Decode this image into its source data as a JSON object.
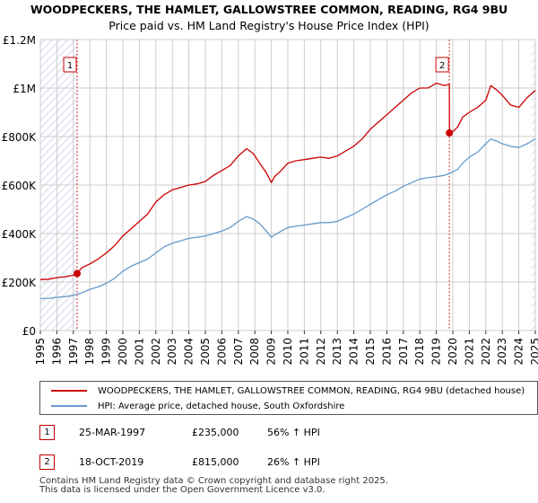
{
  "chart_data": {
    "type": "line",
    "title": "WOODPECKERS, THE HAMLET, GALLOWSTREE COMMON, READING, RG4 9BU",
    "subtitle": "Price paid vs. HM Land Registry's House Price Index (HPI)",
    "xlabel": "",
    "ylabel": "",
    "xlim": [
      1995,
      2025
    ],
    "ylim": [
      0,
      1200000
    ],
    "x_ticks": [
      1995,
      1996,
      1997,
      1998,
      1999,
      2000,
      2001,
      2002,
      2003,
      2004,
      2005,
      2006,
      2007,
      2008,
      2009,
      2010,
      2011,
      2012,
      2013,
      2014,
      2015,
      2016,
      2017,
      2018,
      2019,
      2020,
      2021,
      2022,
      2023,
      2024,
      2025
    ],
    "y_ticks": [
      {
        "value": 0,
        "label": "£0"
      },
      {
        "value": 200000,
        "label": "£200K"
      },
      {
        "value": 400000,
        "label": "£400K"
      },
      {
        "value": 600000,
        "label": "£600K"
      },
      {
        "value": 800000,
        "label": "£800K"
      },
      {
        "value": 1000000,
        "label": "£1M"
      },
      {
        "value": 1200000,
        "label": "£1.2M"
      }
    ],
    "grid": true,
    "series": [
      {
        "name": "WOODPECKERS, THE HAMLET, GALLOWSTREE COMMON, READING, RG4 9BU (detached house)",
        "color": "#cc0000",
        "x": [
          1995.0,
          1995.5,
          1996.0,
          1996.5,
          1997.0,
          1997.23,
          1997.5,
          1998.0,
          1998.5,
          1999.0,
          1999.5,
          2000.0,
          2000.5,
          2001.0,
          2001.5,
          2002.0,
          2002.5,
          2003.0,
          2003.5,
          2004.0,
          2004.5,
          2005.0,
          2005.5,
          2006.0,
          2006.5,
          2007.0,
          2007.5,
          2007.9,
          2008.3,
          2008.7,
          2009.0,
          2009.2,
          2009.6,
          2010.0,
          2010.5,
          2011.0,
          2011.5,
          2012.0,
          2012.5,
          2013.0,
          2013.5,
          2014.0,
          2014.5,
          2015.0,
          2015.5,
          2016.0,
          2016.5,
          2017.0,
          2017.5,
          2018.0,
          2018.5,
          2019.0,
          2019.5,
          2019.79,
          2019.8,
          2020.0,
          2020.3,
          2020.6,
          2021.0,
          2021.5,
          2022.0,
          2022.3,
          2022.7,
          2023.0,
          2023.5,
          2024.0,
          2024.5,
          2025.0
        ],
        "values": [
          210000,
          212000,
          218000,
          222000,
          228000,
          235000,
          258000,
          275000,
          295000,
          320000,
          350000,
          390000,
          420000,
          450000,
          480000,
          530000,
          560000,
          580000,
          590000,
          600000,
          605000,
          615000,
          640000,
          660000,
          680000,
          720000,
          750000,
          730000,
          690000,
          650000,
          610000,
          635000,
          660000,
          690000,
          700000,
          705000,
          710000,
          715000,
          710000,
          720000,
          740000,
          760000,
          790000,
          830000,
          860000,
          890000,
          920000,
          950000,
          980000,
          1000000,
          1000000,
          1020000,
          1010000,
          1015000,
          815000,
          820000,
          840000,
          880000,
          900000,
          920000,
          950000,
          1010000,
          990000,
          970000,
          930000,
          920000,
          960000,
          990000
        ]
      },
      {
        "name": "HPI: Average price, detached house, South Oxfordshire",
        "color": "#6699cc",
        "x": [
          1995.0,
          1995.5,
          1996.0,
          1996.5,
          1997.0,
          1997.5,
          1998.0,
          1998.5,
          1999.0,
          1999.5,
          2000.0,
          2000.5,
          2001.0,
          2001.5,
          2002.0,
          2002.5,
          2003.0,
          2003.5,
          2004.0,
          2004.5,
          2005.0,
          2005.5,
          2006.0,
          2006.5,
          2007.0,
          2007.5,
          2007.9,
          2008.3,
          2008.7,
          2009.0,
          2009.2,
          2009.6,
          2010.0,
          2010.5,
          2011.0,
          2011.5,
          2012.0,
          2012.5,
          2013.0,
          2013.5,
          2014.0,
          2014.5,
          2015.0,
          2015.5,
          2016.0,
          2016.5,
          2017.0,
          2017.5,
          2018.0,
          2018.5,
          2019.0,
          2019.5,
          2019.79,
          2020.0,
          2020.3,
          2020.6,
          2021.0,
          2021.5,
          2022.0,
          2022.3,
          2022.7,
          2023.0,
          2023.5,
          2024.0,
          2024.5,
          2025.0
        ],
        "values": [
          132000,
          133000,
          137000,
          140000,
          145000,
          155000,
          170000,
          180000,
          195000,
          215000,
          245000,
          265000,
          280000,
          295000,
          320000,
          345000,
          360000,
          370000,
          380000,
          385000,
          390000,
          400000,
          410000,
          425000,
          450000,
          470000,
          460000,
          440000,
          410000,
          385000,
          395000,
          410000,
          425000,
          430000,
          435000,
          440000,
          445000,
          445000,
          450000,
          465000,
          480000,
          500000,
          520000,
          540000,
          560000,
          575000,
          595000,
          610000,
          625000,
          630000,
          635000,
          640000,
          648000,
          655000,
          665000,
          690000,
          715000,
          735000,
          770000,
          790000,
          780000,
          770000,
          760000,
          755000,
          770000,
          790000
        ]
      }
    ],
    "markers": [
      {
        "label": "1",
        "x": 1997.23,
        "value": 235000
      },
      {
        "label": "2",
        "x": 2019.79,
        "value": 815000
      }
    ],
    "legend_position": "below"
  },
  "legend": {
    "property_label": "WOODPECKERS, THE HAMLET, GALLOWSTREE COMMON, READING, RG4 9BU (detached house)",
    "hpi_label": "HPI: Average price, detached house, South Oxfordshire"
  },
  "sales": [
    {
      "num": "1",
      "date": "25-MAR-1997",
      "price": "£235,000",
      "hpi_change": "56% ↑ HPI"
    },
    {
      "num": "2",
      "date": "18-OCT-2019",
      "price": "£815,000",
      "hpi_change": "26% ↑ HPI"
    }
  ],
  "footer": {
    "line1": "Contains HM Land Registry data © Crown copyright and database right 2025.",
    "line2": "This data is licensed under the Open Government Licence v3.0."
  },
  "colors": {
    "property": "#cc0000",
    "hpi": "#6699cc",
    "hatch": "#dfe4ef",
    "grid": "#cccccc",
    "vline": "#dd3333"
  }
}
